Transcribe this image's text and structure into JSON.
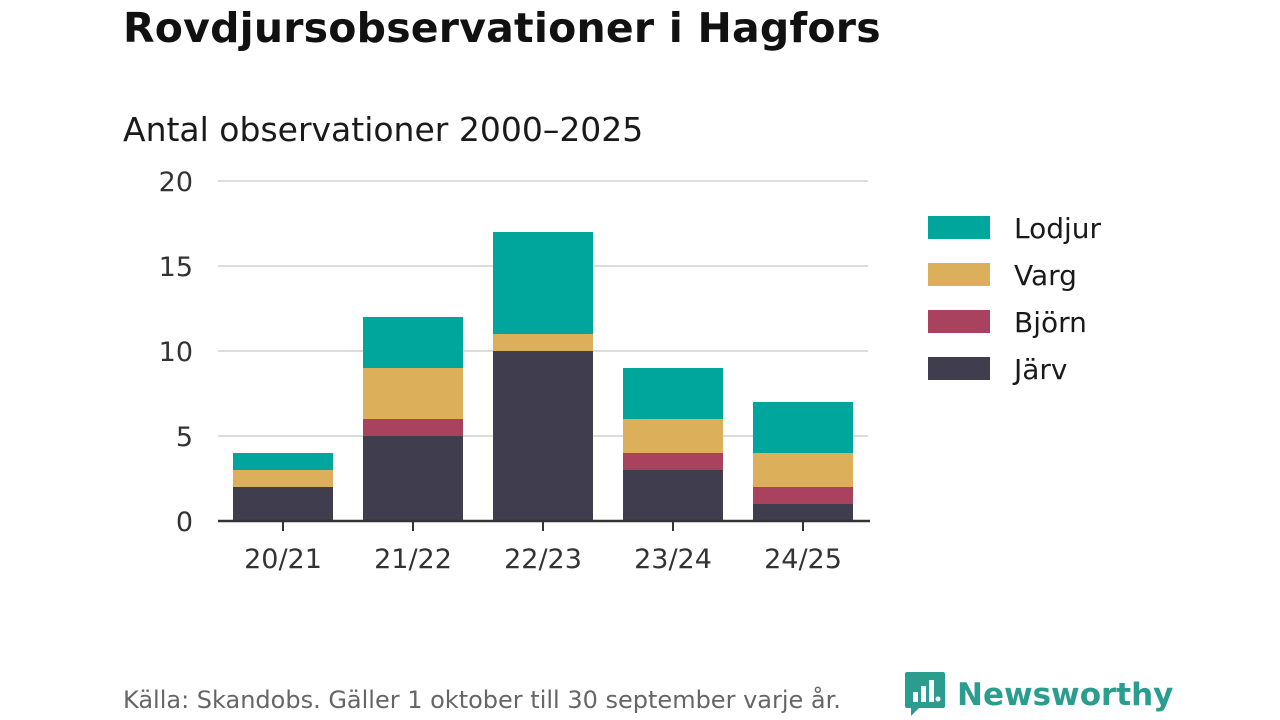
{
  "header": {
    "title": "Rovdjursobservationer i Hagfors",
    "subtitle": "Antal observationer 2000–2025"
  },
  "footer": {
    "source": "Källa: Skandobs. Gäller 1 oktober till 30 september varje år."
  },
  "brand": {
    "name": "Newsworthy",
    "color": "#2a9d8f"
  },
  "chart_data": {
    "type": "bar",
    "stacked": true,
    "categories": [
      "20/21",
      "21/22",
      "22/23",
      "23/24",
      "24/25"
    ],
    "series": [
      {
        "name": "Järv",
        "color": "#403d4e",
        "values": [
          2,
          5,
          10,
          3,
          1
        ]
      },
      {
        "name": "Björn",
        "color": "#a8425e",
        "values": [
          0,
          1,
          0,
          1,
          1
        ]
      },
      {
        "name": "Varg",
        "color": "#dcb05a",
        "values": [
          1,
          3,
          1,
          2,
          2
        ]
      },
      {
        "name": "Lodjur",
        "color": "#00a59b",
        "values": [
          1,
          3,
          6,
          3,
          3
        ]
      }
    ],
    "legend_order": [
      "Lodjur",
      "Varg",
      "Björn",
      "Järv"
    ],
    "ylim": [
      0,
      20
    ],
    "yticks": [
      0,
      5,
      10,
      15,
      20
    ],
    "grid": true,
    "legend_position": "right"
  }
}
